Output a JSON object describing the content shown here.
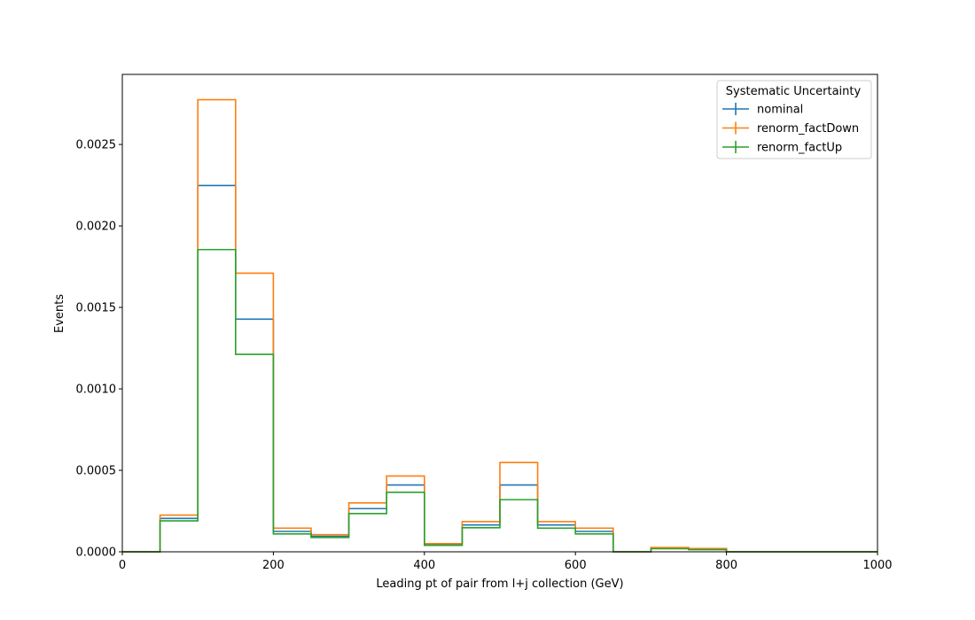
{
  "chart_data": {
    "type": "histogram-step",
    "title": "",
    "xlabel": "Leading pt of pair from l+j collection (GeV)",
    "ylabel": "Events",
    "xlim": [
      0,
      1000
    ],
    "ylim": [
      0,
      0.00293
    ],
    "xticks": [
      0,
      200,
      400,
      600,
      800,
      1000
    ],
    "xtick_labels": [
      "0",
      "200",
      "400",
      "600",
      "800",
      "1000"
    ],
    "yticks": [
      0,
      0.0005,
      0.001,
      0.0015,
      0.002,
      0.0025
    ],
    "ytick_labels": [
      "0.0000",
      "0.0005",
      "0.0010",
      "0.0015",
      "0.0020",
      "0.0025"
    ],
    "grid": false,
    "legend": {
      "title": "Systematic Uncertainty",
      "placement": "top-right"
    },
    "bin_edges": [
      0,
      50,
      100,
      150,
      200,
      250,
      300,
      350,
      400,
      450,
      500,
      550,
      600,
      650,
      700,
      750,
      800,
      850,
      900,
      950,
      1000
    ],
    "series": [
      {
        "name": "nominal",
        "color": "#1f77b4",
        "values": [
          0,
          0.000205,
          0.002248,
          0.001428,
          0.000125,
          9.5e-05,
          0.000265,
          0.00041,
          4.5e-05,
          0.000165,
          0.00041,
          0.000165,
          0.000125,
          0,
          2.2e-05,
          1.6e-05,
          0,
          0,
          0,
          0
        ]
      },
      {
        "name": "renorm_factDown",
        "color": "#ff7f0e",
        "values": [
          0,
          0.000225,
          0.002775,
          0.00171,
          0.000145,
          0.000105,
          0.0003,
          0.000465,
          5e-05,
          0.000185,
          0.000548,
          0.000185,
          0.000145,
          0,
          2.6e-05,
          2e-05,
          0,
          0,
          0,
          0
        ]
      },
      {
        "name": "renorm_factUp",
        "color": "#2ca02c",
        "values": [
          0,
          0.00019,
          0.001855,
          0.001212,
          0.00011,
          8.8e-05,
          0.000235,
          0.000365,
          4e-05,
          0.000148,
          0.00032,
          0.000145,
          0.00011,
          0,
          1.9e-05,
          1.3e-05,
          0,
          0,
          0,
          0
        ]
      }
    ]
  }
}
